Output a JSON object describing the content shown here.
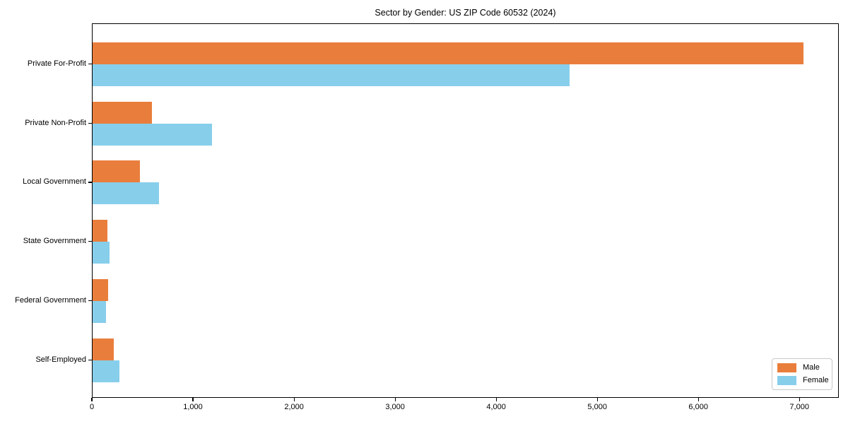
{
  "chart_data": {
    "type": "bar",
    "orientation": "horizontal",
    "title": "Sector by Gender: US ZIP Code 60532 (2024)",
    "categories": [
      "Private For-Profit",
      "Private Non-Profit",
      "Local Government",
      "State Government",
      "Federal Government",
      "Self-Employed"
    ],
    "series": [
      {
        "name": "Male",
        "color": "#E97E3C",
        "values": [
          7030,
          590,
          470,
          145,
          150,
          210
        ]
      },
      {
        "name": "Female",
        "color": "#87CEEB",
        "values": [
          4720,
          1180,
          655,
          165,
          135,
          265
        ]
      }
    ],
    "xlabel": "",
    "ylabel": "",
    "xlim": [
      0,
      7390
    ],
    "xticks": [
      0,
      1000,
      2000,
      3000,
      4000,
      5000,
      6000,
      7000
    ],
    "xtick_labels": [
      "0",
      "1,000",
      "2,000",
      "3,000",
      "4,000",
      "5,000",
      "6,000",
      "7,000"
    ],
    "grid": false,
    "legend": {
      "position": "lower-right",
      "entries": [
        "Male",
        "Female"
      ]
    }
  },
  "colors": {
    "male": "#E97E3C",
    "female": "#87CEEB",
    "axis": "#000000",
    "legend_border": "#c8c8c8",
    "background": "#ffffff",
    "text": "#000000"
  }
}
